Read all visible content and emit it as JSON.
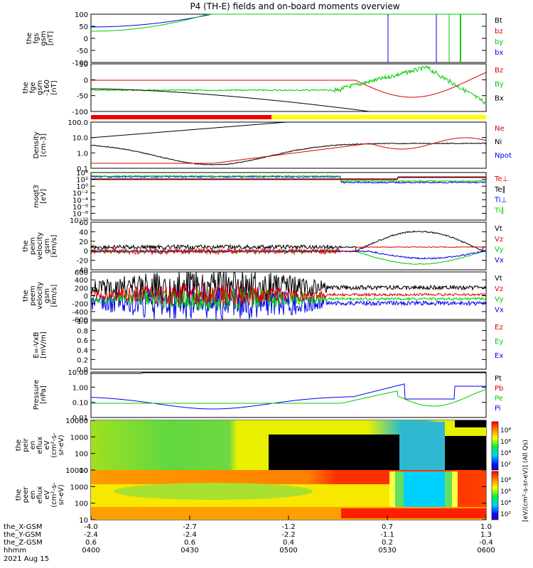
{
  "title": "P4 (TH-E) fields and on-board moments overview",
  "date": "2021 Aug 15",
  "colors": {
    "black": "#000000",
    "red": "#dd0000",
    "green": "#00cc00",
    "blue": "#0000ee",
    "yellow": "#ffff00"
  },
  "chart_data": [
    {
      "type": "line",
      "name": "fgs",
      "ylabel": [
        "the",
        "fgs",
        "gsm",
        "[nT]"
      ],
      "ylim": [
        -100,
        100
      ],
      "ticks": [
        "100",
        "50",
        "0",
        "-50",
        "-100"
      ],
      "legend": [
        {
          "name": "Bt",
          "color": "black"
        },
        {
          "name": "bz",
          "color": "red"
        },
        {
          "name": "by",
          "color": "green"
        },
        {
          "name": "bx",
          "color": "blue"
        }
      ]
    },
    {
      "type": "line",
      "name": "fge",
      "ylabel": [
        "the",
        "fge",
        "gsm",
        "-160",
        "[nT]"
      ],
      "ylim": [
        -125,
        75
      ],
      "ticks": [
        "50",
        "0",
        "-50",
        "-100"
      ],
      "legend": [
        {
          "name": "Bz",
          "color": "red"
        },
        {
          "name": "By",
          "color": "green"
        },
        {
          "name": "Bx",
          "color": "black"
        }
      ]
    },
    {
      "type": "line",
      "name": "density",
      "scale": "log",
      "ylabel": [
        "Density",
        "[cm-3]"
      ],
      "ticks": [
        "100.0",
        "10.0",
        "1.0",
        "0.1"
      ],
      "legend": [
        {
          "name": "Ne",
          "color": "red"
        },
        {
          "name": "Ni",
          "color": "black"
        },
        {
          "name": "Npot",
          "color": "blue"
        }
      ]
    },
    {
      "type": "line",
      "name": "temperature",
      "scale": "log",
      "ylabel": [
        "moqt3",
        "[eV]"
      ],
      "ticks": [
        "10⁴",
        "10²",
        "10⁰",
        "10⁻²",
        "10⁻⁴",
        "10⁻⁶",
        "10⁻⁸",
        "10⁻¹⁰"
      ],
      "legend": [
        {
          "name": "Te⊥",
          "color": "red"
        },
        {
          "name": "Te∥",
          "color": "black"
        },
        {
          "name": "Ti⊥",
          "color": "blue"
        },
        {
          "name": "Ti∥",
          "color": "green"
        }
      ]
    },
    {
      "type": "line",
      "name": "peim velocity",
      "ylabel": [
        "the",
        "peim",
        "velocity",
        "gsm",
        "[km/s]"
      ],
      "ylim": [
        -40,
        60
      ],
      "ticks": [
        "60",
        "40",
        "20",
        "0",
        "-20",
        "-40"
      ],
      "legend": [
        {
          "name": "Vt",
          "color": "black"
        },
        {
          "name": "Vz",
          "color": "red"
        },
        {
          "name": "Vy",
          "color": "green"
        },
        {
          "name": "Vx",
          "color": "blue"
        }
      ]
    },
    {
      "type": "line",
      "name": "peem velocity",
      "ylabel": [
        "the",
        "peem",
        "velocity",
        "gsm",
        "[km/s]"
      ],
      "ylim": [
        -600,
        600
      ],
      "ticks": [
        "600",
        "400",
        "200",
        "0",
        "-200",
        "-400",
        "-600"
      ],
      "legend": [
        {
          "name": "Vt",
          "color": "black"
        },
        {
          "name": "Vz",
          "color": "red"
        },
        {
          "name": "Vy",
          "color": "green"
        },
        {
          "name": "Vx",
          "color": "blue"
        }
      ]
    },
    {
      "type": "line",
      "name": "E field",
      "ylabel": [
        "E=-VxB",
        "[mV/m]"
      ],
      "ylim": [
        0,
        1
      ],
      "ticks": [
        "1.0",
        "0.8",
        "0.6",
        "0.4",
        "0.2",
        "0.0"
      ],
      "legend": [
        {
          "name": "Ez",
          "color": "red"
        },
        {
          "name": "Ey",
          "color": "green"
        },
        {
          "name": "Ex",
          "color": "blue"
        }
      ]
    },
    {
      "type": "line",
      "name": "pressure",
      "scale": "log",
      "ylabel": [
        "Pressure",
        "[nPa]"
      ],
      "ticks": [
        "10.00",
        "1.00",
        "0.10",
        "0.01"
      ],
      "legend": [
        {
          "name": "Pt",
          "color": "black"
        },
        {
          "name": "Pb",
          "color": "red"
        },
        {
          "name": "Pe",
          "color": "green"
        },
        {
          "name": "Pi",
          "color": "blue"
        }
      ]
    },
    {
      "type": "heatmap",
      "name": "peir spectrogram",
      "ylabel": [
        "the",
        "peir",
        "en",
        "eflux",
        "eV",
        "(cm²-s-",
        "sr-eV)"
      ],
      "ticks": [
        "10000",
        "1000",
        "100",
        "10"
      ]
    },
    {
      "type": "heatmap",
      "name": "peer spectrogram",
      "ylabel": [
        "the",
        "peer",
        "en",
        "eflux",
        "eV",
        "(cm²-s-",
        "sr-eV)"
      ],
      "ticks": [
        "10000",
        "1000",
        "100",
        "10"
      ]
    }
  ],
  "colorbar": {
    "label": "[eV/(cm²-s-sr-eV)] (All Qs)",
    "ticks": [
      "10⁸",
      "10⁶",
      "10⁴",
      "10²"
    ]
  },
  "xaxis": {
    "labels": [
      "the_X-GSM",
      "the_Y-GSM",
      "the_Z-GSM",
      "hhmm"
    ],
    "ticks": [
      {
        "x": "-4.0",
        "y": "-2.4",
        "z": "0.6",
        "t": "0400"
      },
      {
        "x": "-2.7",
        "y": "-2.4",
        "z": "0.6",
        "t": "0430"
      },
      {
        "x": "-1.2",
        "y": "-2.2",
        "z": "0.4",
        "t": "0500"
      },
      {
        "x": "0.7",
        "y": "-1.1",
        "z": "0.2",
        "t": "0530"
      },
      {
        "x": "1.0",
        "y": "1.3",
        "z": "-0.4",
        "t": "0600"
      }
    ]
  }
}
